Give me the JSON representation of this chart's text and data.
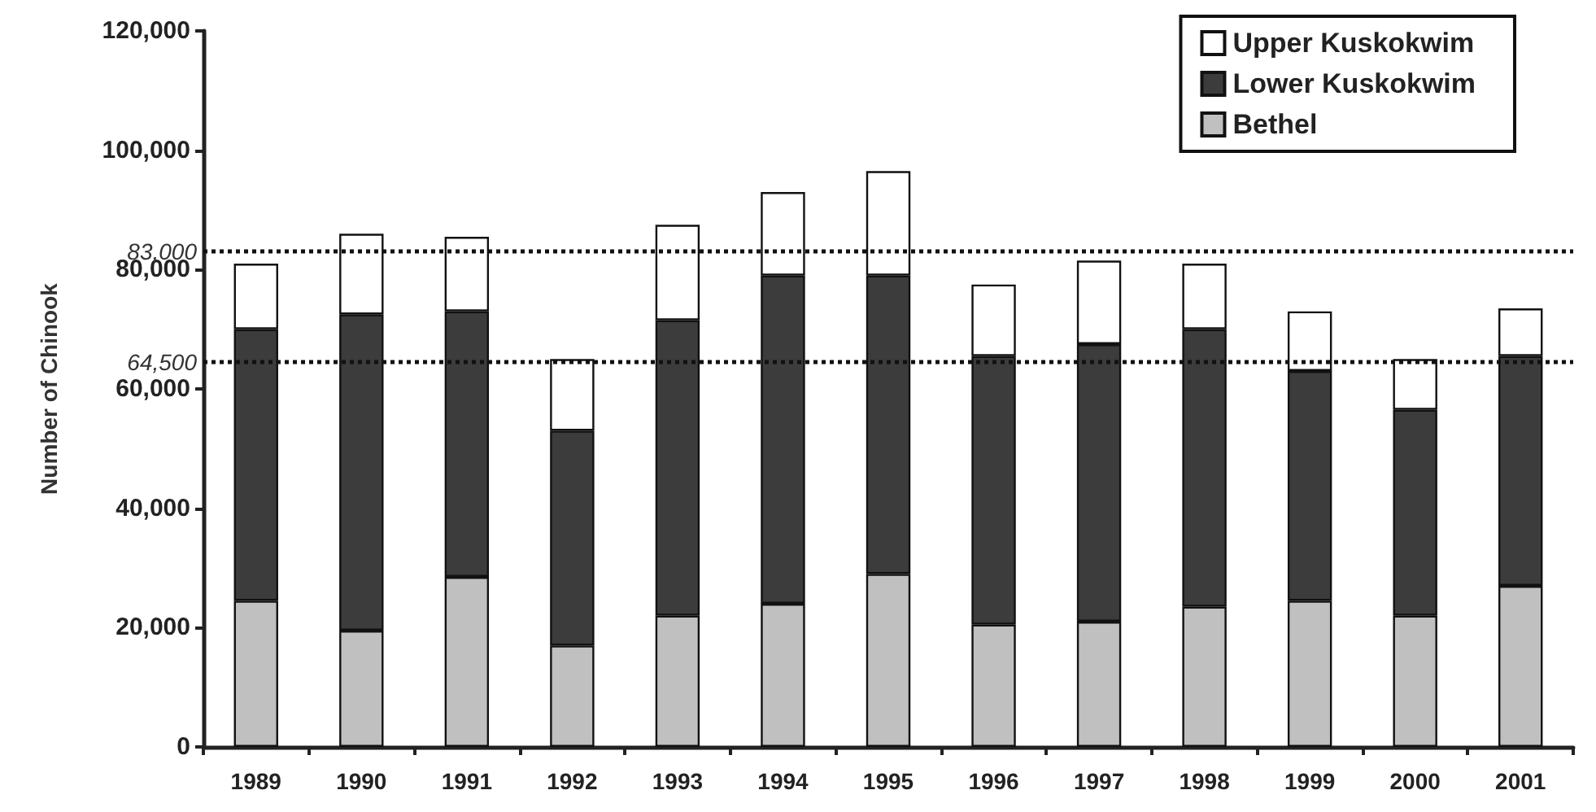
{
  "chart_data": {
    "type": "bar",
    "stacked": true,
    "ylabel": "Number of Chinook",
    "categories": [
      "1989",
      "1990",
      "1991",
      "1992",
      "1993",
      "1994",
      "1995",
      "1996",
      "1997",
      "1998",
      "1999",
      "2000",
      "2001"
    ],
    "series": [
      {
        "name": "Bethel",
        "color": "#c0c0c0",
        "values": [
          24500,
          19500,
          28500,
          17000,
          22000,
          24000,
          29000,
          20500,
          21000,
          23500,
          24500,
          22000,
          27000
        ]
      },
      {
        "name": "Lower Kuskokwim",
        "color": "#3c3c3c",
        "values": [
          45500,
          53000,
          44500,
          36000,
          49500,
          55000,
          50000,
          45000,
          46500,
          46500,
          38500,
          34500,
          38500
        ]
      },
      {
        "name": "Upper Kuskokwim",
        "color": "#ffffff",
        "values": [
          11000,
          13500,
          12500,
          12000,
          16000,
          14000,
          17500,
          12000,
          14000,
          11000,
          10000,
          8500,
          8000
        ]
      }
    ],
    "ylim": [
      0,
      120000
    ],
    "yticks": [
      0,
      {
        "value": 20000,
        "label": "20,000"
      },
      {
        "value": 40000,
        "label": "40,000"
      },
      {
        "value": 60000,
        "label": "60,000"
      },
      {
        "value": 80000,
        "label": "80,000"
      },
      {
        "value": 100000,
        "label": "100,000"
      },
      {
        "value": 120000,
        "label": "120,000"
      }
    ],
    "ref_lines": [
      {
        "axis": "y",
        "value": 83000,
        "label": "83,000",
        "line_style": "dotted"
      },
      {
        "axis": "y",
        "value": 64500,
        "label": "64,500",
        "line_style": "dotted"
      }
    ],
    "grid": false,
    "legend": "top right"
  }
}
